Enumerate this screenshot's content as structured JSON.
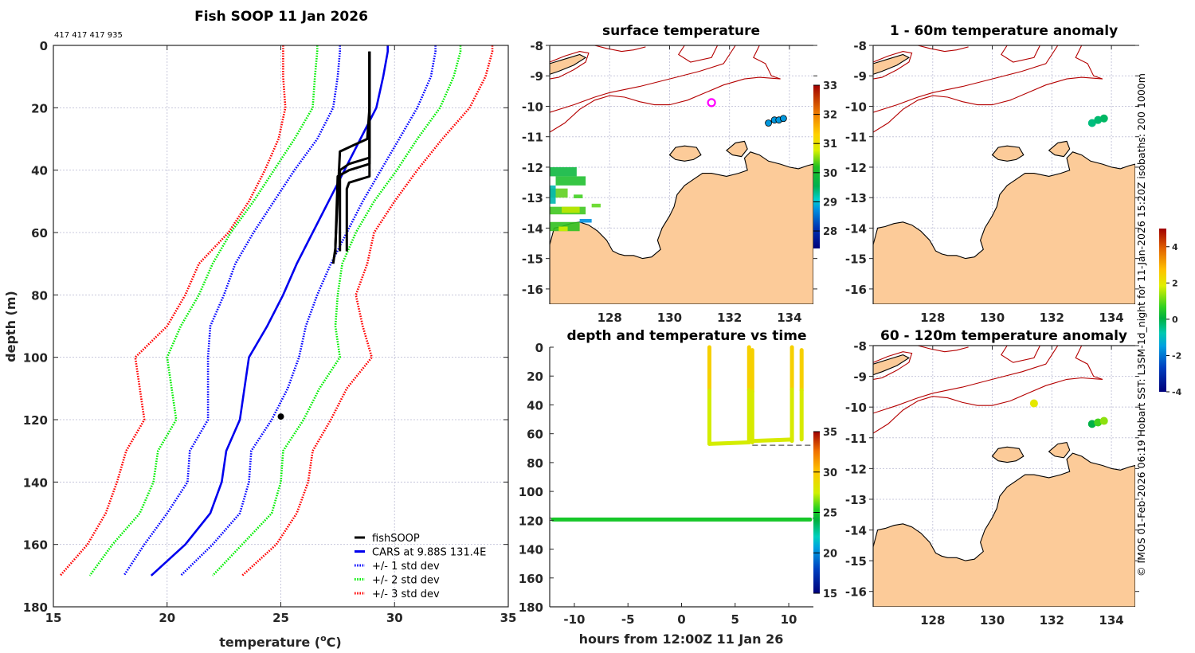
{
  "profile": {
    "title": "Fish SOOP 11 Jan 2026",
    "ids_note": "417 417 417 935",
    "xlabel_prefix": "temperature (",
    "xlabel_sup": "o",
    "xlabel_suffix": "C)",
    "ylabel": "depth (m)"
  },
  "map_surface": {
    "title": "surface temperature"
  },
  "map_anom_1_60": {
    "title": "1 - 60m temperature anomaly"
  },
  "map_anom_60_120": {
    "title": "60 - 120m temperature anomaly"
  },
  "timeseries": {
    "title": "depth and temperature vs time",
    "xlabel": "hours from 12:00Z 11 Jan 26"
  },
  "side_note": "© IMOS 01-Feb-2026 06:19 Hobart SST: L3SM-1d_night for 11-Jan-2026 15:20Z isobaths: 200  1000m",
  "colors": {
    "fishsoop": "#000000",
    "cars": "#0000ee",
    "std1": "#0000ff",
    "std2": "#00ee00",
    "std3": "#ff0000",
    "land": "#fccb99",
    "isobath": "#b40000",
    "ship_marker": "#ff00ff"
  },
  "chart_data": [
    {
      "id": "profile",
      "type": "line",
      "title": "Fish SOOP 11 Jan 2026",
      "xlabel": "temperature (°C)",
      "ylabel": "depth (m)",
      "xlim": [
        15,
        35
      ],
      "ylim": [
        0,
        180
      ],
      "y_reversed": true,
      "xticks": [
        15,
        20,
        25,
        30,
        35
      ],
      "yticks": [
        0,
        20,
        40,
        60,
        80,
        100,
        120,
        140,
        160,
        180
      ],
      "grid": true,
      "legend_position": "bottom-right",
      "legend": [
        "fishSOOP",
        "CARS at 9.88S 131.4E",
        "+/- 1 std dev",
        "+/- 2 std dev",
        "+/- 3 std dev"
      ],
      "depth": [
        0,
        2,
        10,
        20,
        30,
        40,
        50,
        60,
        70,
        80,
        90,
        100,
        110,
        120,
        130,
        140,
        150,
        160,
        170
      ],
      "series": [
        {
          "name": "CARS at 9.88S 131.4E",
          "style": "solid-blue",
          "temp": [
            29.7,
            29.7,
            29.5,
            29.2,
            28.5,
            27.8,
            27.1,
            26.4,
            25.7,
            25.1,
            24.4,
            23.6,
            23.4,
            23.2,
            22.6,
            22.4,
            21.9,
            20.8,
            19.3
          ]
        },
        {
          "name": "+1 std dev",
          "style": "dotted-blue",
          "temp": [
            31.8,
            31.8,
            31.6,
            31.0,
            30.2,
            29.4,
            28.6,
            27.9,
            27.2,
            26.6,
            26.1,
            25.8,
            25.3,
            24.6,
            23.7,
            23.6,
            23.2,
            22.0,
            20.6
          ]
        },
        {
          "name": "-1 std dev",
          "style": "dotted-blue",
          "temp": [
            27.6,
            27.6,
            27.5,
            27.3,
            26.6,
            25.6,
            24.7,
            23.8,
            23.0,
            22.5,
            21.9,
            21.8,
            21.8,
            21.8,
            21.0,
            20.9,
            20.0,
            19.0,
            18.1
          ]
        },
        {
          "name": "+2 std dev",
          "style": "dotted-green",
          "temp": [
            32.9,
            32.9,
            32.6,
            32.0,
            31.0,
            30.1,
            29.1,
            28.3,
            27.7,
            27.5,
            27.4,
            27.6,
            26.7,
            26.0,
            25.1,
            25.0,
            24.6,
            23.3,
            22.0
          ]
        },
        {
          "name": "-2 std dev",
          "style": "dotted-green",
          "temp": [
            26.6,
            26.6,
            26.5,
            26.4,
            25.6,
            24.7,
            23.8,
            22.8,
            22.0,
            21.4,
            20.6,
            20.0,
            20.2,
            20.4,
            19.6,
            19.4,
            18.8,
            17.6,
            16.6
          ]
        },
        {
          "name": "+3 std dev",
          "style": "dotted-red",
          "temp": [
            34.3,
            34.3,
            34.0,
            33.3,
            32.1,
            31.0,
            30.0,
            29.1,
            28.8,
            28.3,
            28.6,
            29.0,
            27.9,
            27.2,
            26.4,
            26.2,
            25.7,
            24.8,
            23.3
          ]
        },
        {
          "name": "-3 std dev",
          "style": "dotted-red",
          "temp": [
            25.1,
            25.1,
            25.1,
            25.2,
            24.9,
            24.3,
            23.6,
            22.7,
            21.4,
            20.8,
            20.0,
            18.6,
            18.8,
            19.0,
            18.2,
            17.8,
            17.3,
            16.5,
            15.3
          ]
        }
      ],
      "fishsoop_casts": [
        {
          "depth": [
            2,
            20,
            30,
            32,
            34,
            64,
            67
          ],
          "temp": [
            28.9,
            28.9,
            28.8,
            28.2,
            27.6,
            27.4,
            27.4
          ]
        },
        {
          "depth": [
            2,
            20,
            36,
            38,
            40,
            64,
            66
          ],
          "temp": [
            28.9,
            28.9,
            28.9,
            28.0,
            27.6,
            27.6,
            27.6
          ]
        },
        {
          "depth": [
            2,
            20,
            38,
            40,
            42,
            65,
            70
          ],
          "temp": [
            28.9,
            28.9,
            28.9,
            28.0,
            27.5,
            27.4,
            27.3
          ]
        },
        {
          "depth": [
            2,
            20,
            42,
            44,
            46,
            64,
            66
          ],
          "temp": [
            28.9,
            28.9,
            28.9,
            28.0,
            27.9,
            27.9,
            27.9
          ]
        }
      ],
      "fishsoop_point": {
        "temp": 25.0,
        "depth": 119
      }
    },
    {
      "id": "surface_temperature_map",
      "type": "heatmap",
      "title": "surface temperature",
      "xlim": [
        126,
        134.8
      ],
      "ylim": [
        -16.5,
        -8
      ],
      "xticks": [
        128,
        130,
        132,
        134
      ],
      "yticks": [
        -8,
        -9,
        -10,
        -11,
        -12,
        -13,
        -14,
        -15,
        -16
      ],
      "colorbar": {
        "min": 27.4,
        "max": 33,
        "ticks": [
          28,
          29,
          30,
          31,
          32,
          33
        ]
      },
      "ship_position": {
        "lon": 131.4,
        "lat": -9.88
      },
      "markers": [
        {
          "lon": 133.3,
          "lat": -10.55,
          "value": 28.9
        },
        {
          "lon": 133.5,
          "lat": -10.45,
          "value": 28.9
        },
        {
          "lon": 133.65,
          "lat": -10.45,
          "value": 28.9
        },
        {
          "lon": 133.8,
          "lat": -10.4,
          "value": 28.9
        }
      ]
    },
    {
      "id": "anomaly_1_60m",
      "type": "scatter",
      "title": "1 - 60m temperature anomaly",
      "xlim": [
        126,
        134.8
      ],
      "ylim": [
        -16.5,
        -8
      ],
      "xticks": [
        128,
        130,
        132,
        134
      ],
      "yticks": [
        -8,
        -9,
        -10,
        -11,
        -12,
        -13,
        -14,
        -15,
        -16
      ],
      "colorbar": {
        "min": -4,
        "max": 5,
        "ticks": [
          -4,
          -2,
          0,
          2,
          4
        ]
      },
      "markers": [
        {
          "lon": 133.35,
          "lat": -10.55,
          "value": -0.4
        },
        {
          "lon": 133.55,
          "lat": -10.45,
          "value": -0.3
        },
        {
          "lon": 133.75,
          "lat": -10.4,
          "value": -0.2
        }
      ]
    },
    {
      "id": "anomaly_60_120m",
      "type": "scatter",
      "title": "60 - 120m temperature anomaly",
      "xlim": [
        126,
        134.8
      ],
      "ylim": [
        -16.5,
        -8
      ],
      "xticks": [
        128,
        130,
        132,
        134
      ],
      "yticks": [
        -8,
        -9,
        -10,
        -11,
        -12,
        -13,
        -14,
        -15,
        -16
      ],
      "markers": [
        {
          "lon": 131.4,
          "lat": -9.88,
          "value": 2.0
        },
        {
          "lon": 133.35,
          "lat": -10.55,
          "value": 0.0
        },
        {
          "lon": 133.55,
          "lat": -10.5,
          "value": 0.8
        },
        {
          "lon": 133.75,
          "lat": -10.45,
          "value": 1.3
        }
      ]
    },
    {
      "id": "depth_temp_vs_time",
      "type": "scatter",
      "title": "depth and temperature vs time",
      "xlabel": "hours from 12:00Z 11 Jan 26",
      "xlim": [
        -12.3,
        12.3
      ],
      "ylim": [
        0,
        180
      ],
      "y_reversed": true,
      "xticks": [
        -10,
        -5,
        0,
        5,
        10
      ],
      "yticks": [
        0,
        20,
        40,
        60,
        80,
        100,
        120,
        140,
        160,
        180
      ],
      "colorbar": {
        "min": 15,
        "max": 35,
        "ticks": [
          15,
          20,
          25,
          30,
          35
        ]
      },
      "segments": [
        {
          "t": [
            2.6,
            2.6
          ],
          "depth": [
            0,
            67
          ],
          "temp_top": 29.5,
          "temp_bottom": 27.6
        },
        {
          "t": [
            2.6,
            6.3
          ],
          "depth": [
            67,
            66
          ],
          "temp": 27.6
        },
        {
          "t": [
            6.3,
            6.3
          ],
          "depth": [
            0,
            66
          ],
          "temp_top": 29.5,
          "temp_bottom": 27.8
        },
        {
          "t": [
            6.6,
            6.6
          ],
          "depth": [
            2,
            66
          ],
          "temp_top": 29.5,
          "temp_bottom": 27.8
        },
        {
          "t": [
            6.6,
            10.3
          ],
          "depth": [
            65,
            64
          ],
          "temp": 27.8
        },
        {
          "t": [
            10.3,
            10.3
          ],
          "depth": [
            0,
            65
          ],
          "temp_top": 29.5,
          "temp_bottom": 27.8
        },
        {
          "t": [
            11.2,
            11.2
          ],
          "depth": [
            2,
            64
          ],
          "temp_top": 29.5,
          "temp_bottom": 27.8
        },
        {
          "t": [
            -12,
            12
          ],
          "depth": [
            119.5,
            119.5
          ],
          "temp": 25.0
        }
      ],
      "bottom_depth_lines": [
        {
          "t": [
            2.6,
            6.3
          ],
          "depth": 66.5
        },
        {
          "t": [
            6.6,
            12.3
          ],
          "depth": 68
        },
        {
          "t": [
            -12.3,
            12.3
          ],
          "depth": 118.5
        }
      ]
    }
  ]
}
